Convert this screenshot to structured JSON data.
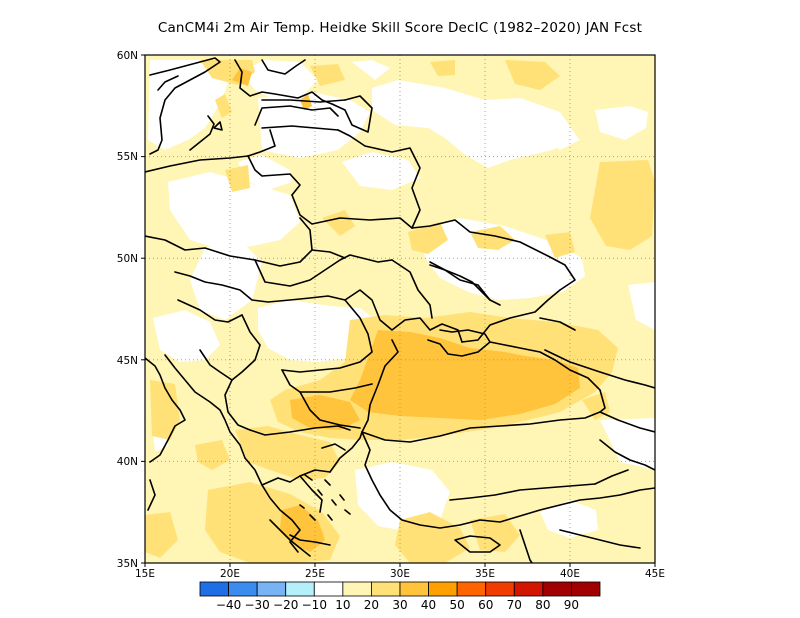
{
  "title": "CanCM4i  2m Air Temp. Heidke Skill Score DecIC (1982–2020) JAN Fcst",
  "axes": {
    "lon_ticks": [
      "15E",
      "20E",
      "25E",
      "30E",
      "35E",
      "40E",
      "45E"
    ],
    "lat_ticks": [
      "35N",
      "40N",
      "45N",
      "50N",
      "55N",
      "60N"
    ],
    "lon_range": [
      15,
      45
    ],
    "lat_range": [
      35,
      60
    ],
    "grid": "dotted"
  },
  "colorbar": {
    "labels": [
      "−40",
      "−30",
      "−20",
      "−10",
      "10",
      "20",
      "30",
      "40",
      "50",
      "60",
      "70",
      "80",
      "90"
    ],
    "colors": [
      "#1e6fe6",
      "#3c8cf0",
      "#78b4f5",
      "#b4f0fa",
      "#ffffff",
      "#fff5b4",
      "#ffe178",
      "#ffc33c",
      "#ffa000",
      "#ff6400",
      "#f03c00",
      "#d21400",
      "#a00000",
      "#a00000"
    ]
  },
  "colors": {
    "pale_yellow": "#fff5b4",
    "light_orange": "#ffe178",
    "orange": "#ffc33c",
    "white": "#ffffff",
    "border_line": "#000000"
  }
}
